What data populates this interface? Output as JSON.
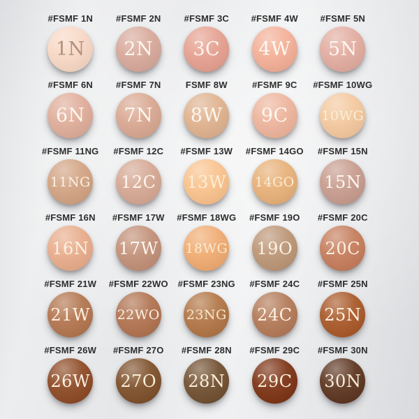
{
  "style": {
    "background_base": "#E9EAEB",
    "label_color": "#2D2D2E",
    "default_code_color": "#FDF6EE"
  },
  "chart": {
    "brand_prefix": "FSMF",
    "columns": 5,
    "rows": 6,
    "swatches": [
      {
        "label": "#FSMF 1N",
        "code": "1N",
        "color": "#F8D8C5",
        "text_color": "#B2907D"
      },
      {
        "label": "#FSMF 2N",
        "code": "2N",
        "color": "#D7A99B",
        "text_color": "#FDF6EE"
      },
      {
        "label": "#FSMF 3C",
        "code": "3C",
        "color": "#E5A090",
        "text_color": "#FDF6EE"
      },
      {
        "label": "#FSMF 4W",
        "code": "4W",
        "color": "#F3AF97",
        "text_color": "#FEF9F2"
      },
      {
        "label": "#FSMF 5N",
        "code": "5N",
        "color": "#E2ACA0",
        "text_color": "#FDF6EE"
      },
      {
        "label": "#FSMF 6N",
        "code": "6N",
        "color": "#DFAD9A",
        "text_color": "#FDF6EE"
      },
      {
        "label": "#FSMF 7N",
        "code": "7N",
        "color": "#D9A892",
        "text_color": "#FDF6EE"
      },
      {
        "label": "FSMF 8W",
        "code": "8W",
        "color": "#DFB28F",
        "text_color": "#FDF6EE"
      },
      {
        "label": "#FSMF 9C",
        "code": "9C",
        "color": "#EDB49C",
        "text_color": "#FDF6EE"
      },
      {
        "label": "#FSMF 10WG",
        "code": "10WG",
        "color": "#F3C89E",
        "text_color": "#FAEED6"
      },
      {
        "label": "#FSMF 11NG",
        "code": "11NG",
        "color": "#D2A383",
        "text_color": "#FBF2E4"
      },
      {
        "label": "#FSMF 12C",
        "code": "12C",
        "color": "#D5A894",
        "text_color": "#FDF6EE"
      },
      {
        "label": "#FSMF 13W",
        "code": "13W",
        "color": "#F9C28D",
        "text_color": "#FCEFD6"
      },
      {
        "label": "#FSMF 14GO",
        "code": "14GO",
        "color": "#E7B078",
        "text_color": "#FAEDD3"
      },
      {
        "label": "#FSMF 15N",
        "code": "15N",
        "color": "#C79C8E",
        "text_color": "#FDF6EE"
      },
      {
        "label": "#FSMF 16N",
        "code": "16N",
        "color": "#E8AC8B",
        "text_color": "#FCF0E2"
      },
      {
        "label": "#FSMF 17W",
        "code": "17W",
        "color": "#C29078",
        "text_color": "#FDF6EE"
      },
      {
        "label": "#FSMF 18WG",
        "code": "18WG",
        "color": "#F0AB71",
        "text_color": "#FAEAD0"
      },
      {
        "label": "#FSMF 19O",
        "code": "19O",
        "color": "#BC9677",
        "text_color": "#FBF2E4"
      },
      {
        "label": "#FSMF 20C",
        "code": "20C",
        "color": "#C57D5C",
        "text_color": "#FCF0E2"
      },
      {
        "label": "#FSMF 21W",
        "code": "21W",
        "color": "#B3754F",
        "text_color": "#FCF0E2"
      },
      {
        "label": "#FSMF 22WO",
        "code": "22WO",
        "color": "#B07350",
        "text_color": "#FCF0E2"
      },
      {
        "label": "#FSMF 23NG",
        "code": "23NG",
        "color": "#B17546",
        "text_color": "#F8E8CB"
      },
      {
        "label": "#FSMF 24C",
        "code": "24C",
        "color": "#B37A58",
        "text_color": "#FCF0E2"
      },
      {
        "label": "#FSMF 25N",
        "code": "25N",
        "color": "#A95929",
        "text_color": "#FCF0E2"
      },
      {
        "label": "#FSMF 26W",
        "code": "26W",
        "color": "#8D4A25",
        "text_color": "#FCF0E2"
      },
      {
        "label": "#FSMF 27O",
        "code": "27O",
        "color": "#7E502B",
        "text_color": "#F9EDD8"
      },
      {
        "label": "#FSMF 28N",
        "code": "28N",
        "color": "#715031",
        "text_color": "#F9EDD8"
      },
      {
        "label": "#FSMF 29C",
        "code": "29C",
        "color": "#7D3416",
        "text_color": "#F9EDD8"
      },
      {
        "label": "#FSMF 30N",
        "code": "30N",
        "color": "#5D3621",
        "text_color": "#F9EDD8"
      }
    ]
  }
}
